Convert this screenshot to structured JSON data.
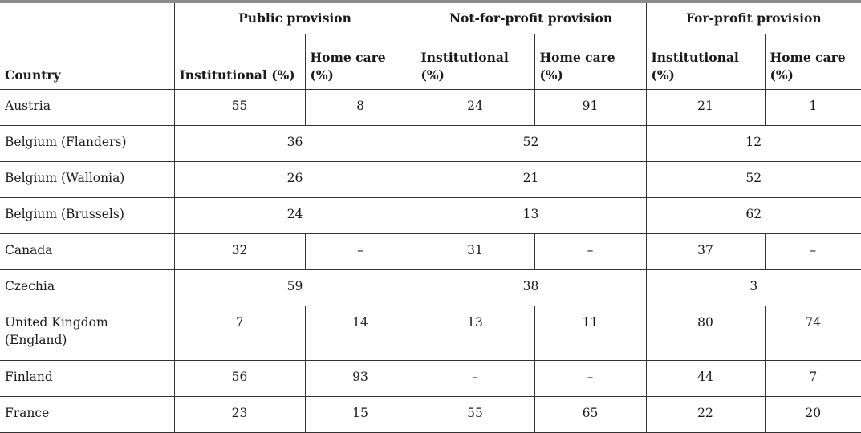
{
  "headers": {
    "country": "Country",
    "groups": [
      "Public provision",
      "Not-for-profit provision",
      "For-profit provision"
    ],
    "subheaders": [
      "Institutional (%)",
      "Home care (%)",
      "Institutional (%)",
      "Home care (%)",
      "Institutional (%)",
      "Home care (%)"
    ]
  },
  "rows": [
    {
      "country": "Austria",
      "cells": [
        "55",
        "8",
        "24",
        "91",
        "21",
        "1"
      ]
    },
    {
      "country": "Belgium (Flanders)",
      "cells": [
        "36",
        "52",
        "12"
      ]
    },
    {
      "country": "Belgium (Wallonia)",
      "cells": [
        "26",
        "21",
        "52"
      ]
    },
    {
      "country": "Belgium (Brussels)",
      "cells": [
        "24",
        "13",
        "62"
      ]
    },
    {
      "country": "Canada",
      "cells": [
        "32",
        "–",
        "31",
        "–",
        "37",
        "–"
      ]
    },
    {
      "country": "Czechia",
      "cells": [
        "59",
        "38",
        "3"
      ]
    },
    {
      "country": "United Kingdom (England)",
      "cells": [
        "7",
        "14",
        "13",
        "11",
        "80",
        "74"
      ]
    },
    {
      "country": "Finland",
      "cells": [
        "56",
        "93",
        "–",
        "–",
        "44",
        "7"
      ]
    },
    {
      "country": "France",
      "cells": [
        "23",
        "15",
        "55",
        "65",
        "22",
        "20"
      ]
    }
  ]
}
